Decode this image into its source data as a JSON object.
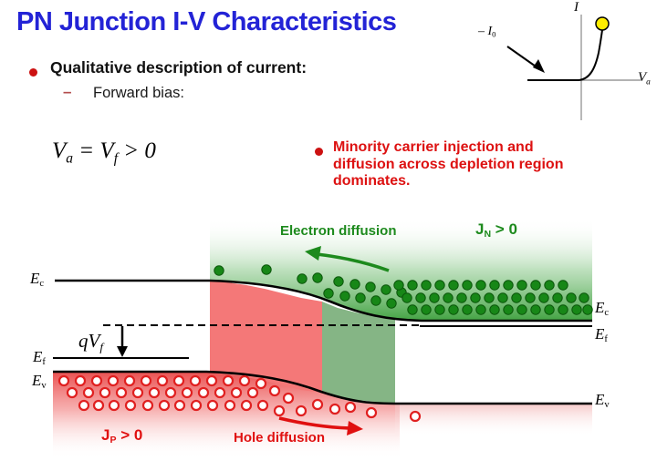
{
  "title": "PN Junction I-V Characteristics",
  "bullets": {
    "main": "Qualitative description of current:",
    "dash": "–",
    "sub": "Forward bias:",
    "red_note": "Minority carrier injection and diffusion across depletion region dominates."
  },
  "equation": {
    "t1": "V",
    "s1": "a",
    "t2": " = V",
    "s2": "f",
    "t3": " > 0"
  },
  "iv_plot": {
    "y_axis_label": "I",
    "x_axis_main": "V",
    "x_axis_sub": "a",
    "i0_main": "– I",
    "i0_sub": "0"
  },
  "band_diagram": {
    "electron_diffusion_label": "Electron diffusion",
    "hole_diffusion_label": "Hole diffusion",
    "jn": {
      "main": "J",
      "sub": "N",
      "rest": " > 0"
    },
    "jp": {
      "main": "J",
      "sub": "P",
      "rest": " > 0"
    },
    "qvf": {
      "main": "qV",
      "sub": "f"
    },
    "ec": {
      "main": "E",
      "sub": "c"
    },
    "ef": {
      "main": "E",
      "sub": "f"
    },
    "ev": {
      "main": "E",
      "sub": "v"
    },
    "electrons": [
      [
        240,
        297
      ],
      [
        292,
        296
      ],
      [
        331,
        306
      ],
      [
        348,
        305
      ],
      [
        371,
        309
      ],
      [
        389,
        312
      ],
      [
        360,
        322
      ],
      [
        378,
        325
      ],
      [
        395,
        327
      ],
      [
        412,
        330
      ],
      [
        406,
        315
      ],
      [
        423,
        318
      ],
      [
        440,
        321
      ],
      [
        429,
        333
      ],
      [
        437,
        313
      ],
      [
        452,
        313
      ],
      [
        467,
        313
      ],
      [
        482,
        313
      ],
      [
        497,
        313
      ],
      [
        512,
        313
      ],
      [
        527,
        313
      ],
      [
        542,
        313
      ],
      [
        557,
        313
      ],
      [
        572,
        313
      ],
      [
        587,
        313
      ],
      [
        602,
        313
      ],
      [
        617,
        313
      ],
      [
        446,
        327
      ],
      [
        461,
        327
      ],
      [
        476,
        327
      ],
      [
        491,
        327
      ],
      [
        506,
        327
      ],
      [
        521,
        327
      ],
      [
        536,
        327
      ],
      [
        551,
        327
      ],
      [
        566,
        327
      ],
      [
        581,
        327
      ],
      [
        596,
        327
      ],
      [
        611,
        327
      ],
      [
        626,
        327
      ],
      [
        640,
        327
      ],
      [
        452,
        340
      ],
      [
        467,
        340
      ],
      [
        482,
        340
      ],
      [
        497,
        340
      ],
      [
        512,
        340
      ],
      [
        527,
        340
      ],
      [
        542,
        340
      ],
      [
        557,
        340
      ],
      [
        572,
        340
      ],
      [
        587,
        340
      ],
      [
        602,
        340
      ],
      [
        617,
        340
      ],
      [
        632,
        340
      ],
      [
        644,
        340
      ]
    ],
    "holes": [
      [
        70,
        418
      ],
      [
        88,
        418
      ],
      [
        106,
        418
      ],
      [
        124,
        418
      ],
      [
        142,
        418
      ],
      [
        160,
        418
      ],
      [
        178,
        418
      ],
      [
        196,
        418
      ],
      [
        214,
        418
      ],
      [
        232,
        418
      ],
      [
        250,
        418
      ],
      [
        268,
        418
      ],
      [
        79,
        431
      ],
      [
        97,
        431
      ],
      [
        115,
        431
      ],
      [
        133,
        431
      ],
      [
        151,
        431
      ],
      [
        169,
        431
      ],
      [
        187,
        431
      ],
      [
        205,
        431
      ],
      [
        223,
        431
      ],
      [
        241,
        431
      ],
      [
        259,
        431
      ],
      [
        277,
        431
      ],
      [
        92,
        445
      ],
      [
        108,
        445
      ],
      [
        125,
        445
      ],
      [
        143,
        445
      ],
      [
        162,
        445
      ],
      [
        180,
        445
      ],
      [
        197,
        445
      ],
      [
        215,
        445
      ],
      [
        233,
        445
      ],
      [
        252,
        445
      ],
      [
        270,
        445
      ],
      [
        288,
        445
      ],
      [
        286,
        421
      ],
      [
        301,
        429
      ],
      [
        316,
        437
      ],
      [
        306,
        451
      ],
      [
        330,
        451
      ],
      [
        348,
        444
      ],
      [
        367,
        449
      ],
      [
        384,
        447
      ],
      [
        407,
        453
      ],
      [
        455,
        457
      ]
    ]
  },
  "colors": {
    "title_blue": "#2323d6",
    "red_text": "#dd1111",
    "green_text": "#1d8a1d",
    "electron_fill": "#178717",
    "electron_stroke": "#0b560b",
    "hole_ring": "#e02020",
    "depletion_red": "#f47878",
    "depletion_green": "#85b585",
    "marker_yellow": "#ffee00"
  }
}
